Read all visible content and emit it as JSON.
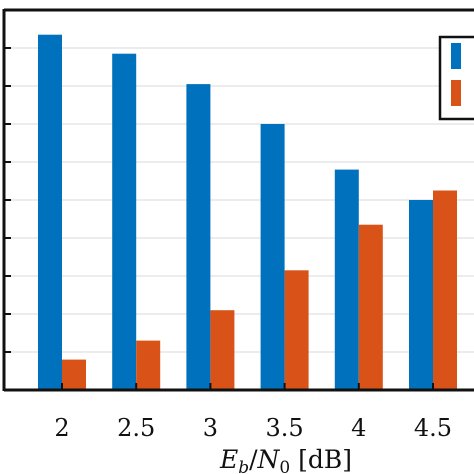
{
  "chart_data": {
    "type": "bar",
    "title": "",
    "xlabel": {
      "italic_1": "E",
      "sub_1": "b",
      "sep": "/",
      "italic_2": "N",
      "sub_2": "0",
      "unit": " [dB]"
    },
    "ylabel": "",
    "categories": [
      "2",
      "2.5",
      "3",
      "3.5",
      "4",
      "4.5"
    ],
    "ylim": [
      0,
      10
    ],
    "y_grid_step": 1,
    "grid": true,
    "legend_placement": "top-right",
    "series": [
      {
        "color": "#0072BD",
        "values": [
          9.35,
          8.85,
          8.05,
          7.0,
          5.8,
          5.0
        ]
      },
      {
        "color": "#D95319",
        "values": [
          0.8,
          1.3,
          2.1,
          3.15,
          4.35,
          5.25
        ]
      }
    ]
  }
}
